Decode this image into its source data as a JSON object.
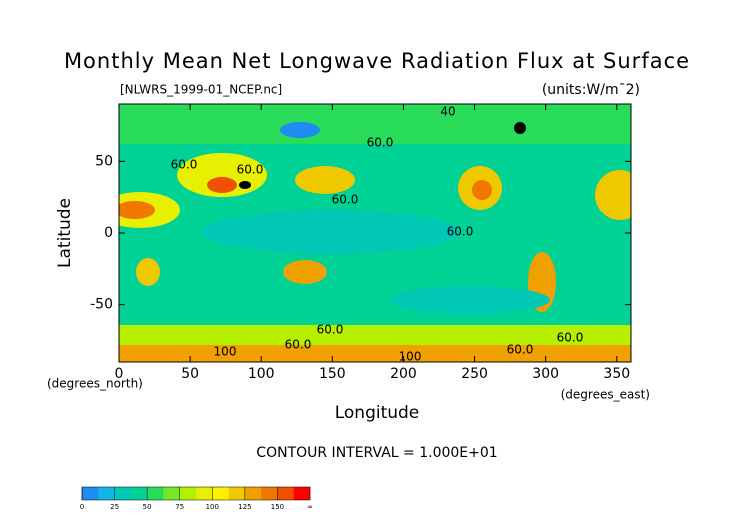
{
  "chart_data": {
    "type": "contour",
    "title": "Monthly Mean Net Longwave Radiation Flux at Surface",
    "subtitle": "[NLWRS_1999-01_NCEP.nc]",
    "units": "(units:W/m¯2)",
    "x_label": "Longitude",
    "y_label": "Latitude",
    "x_units": "(degrees_east)",
    "y_units": "(degrees_north)",
    "xlim": [
      0,
      360
    ],
    "ylim": [
      -90,
      90
    ],
    "xticks": [
      0,
      50,
      100,
      150,
      200,
      250,
      300,
      350
    ],
    "yticks": [
      -50,
      0,
      50
    ],
    "contour_interval": "CONTOUR INTERVAL = 1.000E+01",
    "contour_labels": [
      "40",
      "60.0",
      "60.0",
      "60.0",
      "60.0",
      "60.0",
      "60.0",
      "60.0",
      "100",
      "100",
      "60.0",
      "60.0"
    ],
    "colorbar": {
      "ticks": [
        0,
        25,
        50,
        75,
        100,
        125,
        150
      ],
      "end_label": "∞",
      "colors": [
        "#1e8cf0",
        "#14b4e6",
        "#00c8b4",
        "#00d296",
        "#28dc5a",
        "#78e628",
        "#b4f000",
        "#e6f000",
        "#fff000",
        "#f0c800",
        "#f0a000",
        "#f07800",
        "#f05000",
        "#ff0000"
      ]
    }
  }
}
